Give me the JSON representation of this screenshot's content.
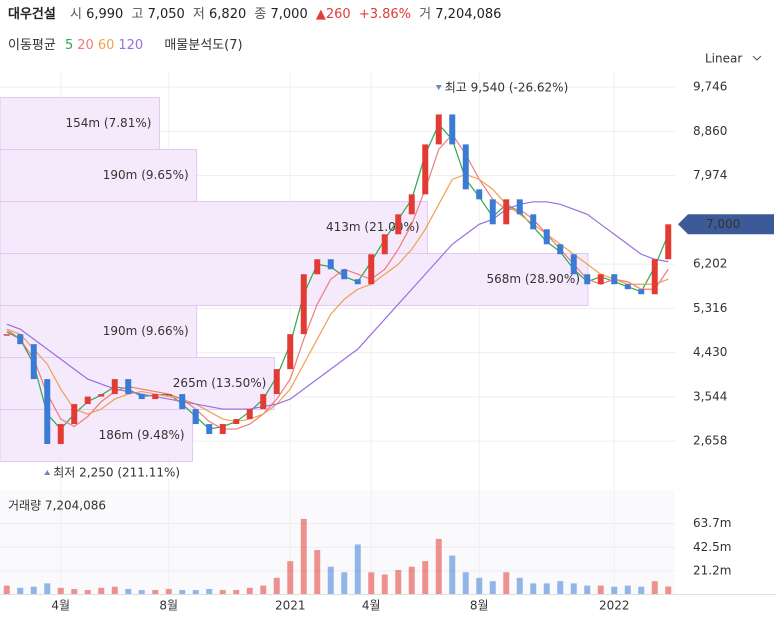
{
  "header": {
    "name": "대우건설",
    "open_label": "시",
    "open": "6,990",
    "high_label": "고",
    "high": "7,050",
    "low_label": "저",
    "low": "6,820",
    "close_label": "종",
    "close": "7,000",
    "change": "▲260",
    "change_pct": "+3.86%",
    "volume_label": "거",
    "volume": "7,204,086"
  },
  "legend_title": "이동평균",
  "profile_title": "매물분석도(7)",
  "scale_mode": "Linear",
  "chart_data": [
    {
      "type": "stock",
      "categories": [
        null,
        null,
        null,
        null,
        "4월",
        null,
        null,
        null,
        null,
        null,
        null,
        null,
        "8월",
        null,
        null,
        null,
        null,
        null,
        null,
        null,
        null,
        "2021",
        null,
        null,
        null,
        null,
        null,
        "4월",
        null,
        null,
        null,
        null,
        null,
        null,
        null,
        "8월",
        null,
        null,
        null,
        null,
        null,
        null,
        null,
        null,
        null,
        "2022",
        null,
        null,
        null,
        null
      ],
      "close": [
        4800,
        4600,
        3900,
        2600,
        3000,
        3400,
        3550,
        3600,
        3900,
        3600,
        3500,
        3600,
        3600,
        3300,
        3000,
        2800,
        3000,
        3100,
        3300,
        3600,
        4100,
        4800,
        6000,
        6300,
        6100,
        5900,
        5800,
        6400,
        6800,
        7200,
        7600,
        8600,
        9200,
        8600,
        7700,
        7500,
        7000,
        7500,
        7200,
        6900,
        6600,
        6400,
        6000,
        5800,
        6000,
        5800,
        5700,
        5600,
        6300,
        7000
      ],
      "up_color": "#e23b34",
      "down_color": "#3a7bd5",
      "series": [
        {
          "name": "5",
          "color": "#2fa84f",
          "values": [
            4850,
            4700,
            4200,
            3200,
            2900,
            3200,
            3450,
            3580,
            3750,
            3700,
            3550,
            3580,
            3600,
            3400,
            3150,
            2900,
            2950,
            3050,
            3250,
            3500,
            3950,
            4600,
            5600,
            6200,
            6150,
            5950,
            5850,
            6250,
            6700,
            7100,
            7500,
            8400,
            9000,
            8700,
            7900,
            7550,
            7150,
            7400,
            7250,
            6950,
            6650,
            6450,
            6100,
            5850,
            5950,
            5850,
            5750,
            5650,
            6150,
            6800
          ]
        },
        {
          "name": "20",
          "color": "#f07a7a",
          "values": [
            4900,
            4700,
            4300,
            3600,
            3100,
            2950,
            3150,
            3450,
            3650,
            3750,
            3700,
            3650,
            3600,
            3500,
            3300,
            3050,
            2900,
            2900,
            3000,
            3200,
            3500,
            3900,
            4700,
            5400,
            5900,
            6100,
            6000,
            5900,
            6100,
            6500,
            7000,
            7700,
            8500,
            8800,
            8400,
            7900,
            7500,
            7300,
            7300,
            7100,
            6800,
            6500,
            6200,
            5900,
            5800,
            5900,
            5850,
            5700,
            5700,
            6100
          ]
        },
        {
          "name": "60",
          "color": "#f0a050",
          "values": [
            4900,
            4800,
            4500,
            4200,
            3700,
            3300,
            3200,
            3300,
            3500,
            3600,
            3650,
            3600,
            3550,
            3500,
            3400,
            3250,
            3100,
            3050,
            3100,
            3200,
            3400,
            3700,
            4200,
            4700,
            5200,
            5500,
            5700,
            5800,
            6000,
            6200,
            6500,
            6900,
            7400,
            7900,
            8000,
            7900,
            7700,
            7400,
            7200,
            7000,
            6800,
            6600,
            6400,
            6200,
            6000,
            5900,
            5800,
            5800,
            5800,
            5900
          ]
        },
        {
          "name": "120",
          "color": "#9a6ee0",
          "values": [
            5000,
            4900,
            4700,
            4500,
            4300,
            4100,
            3900,
            3800,
            3700,
            3650,
            3600,
            3550,
            3500,
            3450,
            3400,
            3350,
            3300,
            3300,
            3300,
            3350,
            3400,
            3500,
            3700,
            3900,
            4100,
            4300,
            4500,
            4800,
            5100,
            5400,
            5700,
            6000,
            6300,
            6600,
            6800,
            7000,
            7100,
            7300,
            7400,
            7450,
            7450,
            7400,
            7300,
            7200,
            7000,
            6800,
            6600,
            6400,
            6300,
            6250
          ]
        }
      ],
      "profile": {
        "bins": [
          2250,
          3291,
          4333,
          5374,
          6416,
          7457,
          8499,
          9540
        ],
        "values": [
          186,
          265,
          190,
          568,
          413,
          190,
          154
        ],
        "value_labels": [
          "186m (9.48%)",
          "265m (13.50%)",
          "190m (9.66%)",
          "568m (28.90%)",
          "413m (21.00%)",
          "190m (9.65%)",
          "154m (7.81%)"
        ],
        "color": "#f3e6fb"
      },
      "annotations": [
        "최고 9,540 (-26.62%)",
        "최저 2,250 (211.11%)"
      ],
      "current": {
        "value": 7000,
        "label": "7,000"
      },
      "ylim": [
        2180,
        10050
      ],
      "yticks": [
        {
          "value": 2658,
          "label": "2,658"
        },
        {
          "value": 3544,
          "label": "3,544"
        },
        {
          "value": 4430,
          "label": "4,430"
        },
        {
          "value": 5316,
          "label": "5,316"
        },
        {
          "value": 6202,
          "label": "6,202"
        },
        {
          "value": 7974,
          "label": "7,974"
        },
        {
          "value": 8860,
          "label": "8,860"
        },
        {
          "value": 9746,
          "label": "9,746"
        }
      ],
      "grid": true
    },
    {
      "type": "bar",
      "title": "거래량 7,204,086",
      "values": [
        8,
        6,
        7,
        10,
        6,
        5,
        4,
        6,
        7,
        5,
        4,
        4,
        5,
        4,
        4,
        5,
        4,
        4,
        6,
        8,
        15,
        30,
        68,
        40,
        25,
        20,
        45,
        20,
        18,
        22,
        25,
        30,
        50,
        35,
        20,
        15,
        12,
        20,
        15,
        10,
        10,
        12,
        10,
        8,
        8,
        7,
        8,
        7,
        12,
        7.2
      ],
      "ylim": [
        0,
        94
      ],
      "yticks": [
        {
          "value": 21.2,
          "label": "21.2m"
        },
        {
          "value": 42.5,
          "label": "42.5m"
        },
        {
          "value": 63.7,
          "label": "63.7m"
        }
      ]
    }
  ]
}
